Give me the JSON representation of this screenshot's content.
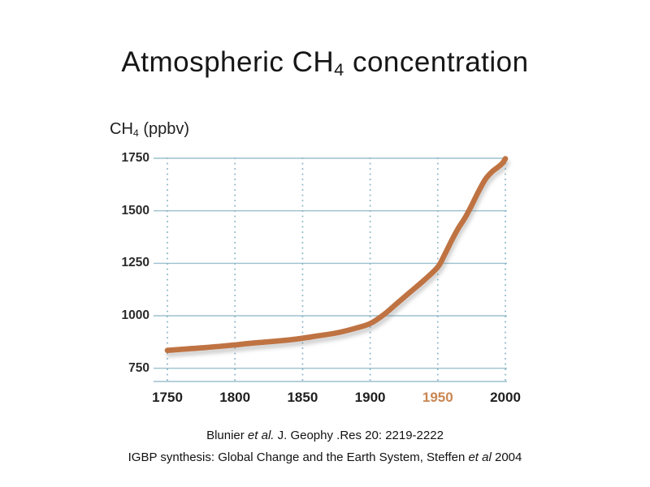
{
  "title": {
    "prefix": "Atmospheric CH",
    "sub": "4",
    "suffix": " concentration"
  },
  "axis_label": {
    "prefix": "CH",
    "sub": "4",
    "suffix": " (ppbv)"
  },
  "citations": [
    {
      "pre": "Blunier ",
      "italic": "et al.",
      "post": " J. Geophy .Res 20: 2219-2222"
    },
    {
      "pre": "IGBP synthesis: Global Change and the Earth System, Steffen ",
      "italic": "et al",
      "post": " 2004"
    }
  ],
  "colors": {
    "background": "#ffffff",
    "title_text": "#161616",
    "tick_text": "#1f1f1f",
    "line": "#bf7342",
    "grid": "#9cc0ce",
    "grid_dots": "#8fb8c8",
    "highlight_tick": "#c98652",
    "shadow": "#8a8a8a"
  },
  "chart_data": {
    "type": "line",
    "title": "Atmospheric CH4 concentration",
    "xlabel": "",
    "ylabel": "CH4 (ppbv)",
    "series_name": "Atmospheric CH4 concentration",
    "x": [
      1750,
      1760,
      1775,
      1790,
      1800,
      1810,
      1825,
      1840,
      1850,
      1860,
      1875,
      1890,
      1900,
      1910,
      1920,
      1930,
      1940,
      1950,
      1955,
      1960,
      1965,
      1970,
      1975,
      1980,
      1985,
      1990,
      1995,
      1998,
      2000
    ],
    "y": [
      835,
      840,
      847,
      855,
      861,
      868,
      876,
      885,
      893,
      903,
      918,
      942,
      963,
      1005,
      1060,
      1115,
      1170,
      1232,
      1290,
      1355,
      1415,
      1465,
      1525,
      1590,
      1648,
      1685,
      1710,
      1728,
      1748
    ],
    "xticks": [
      1750,
      1800,
      1850,
      1900,
      1950,
      2000
    ],
    "yticks": [
      1750,
      1500,
      1250,
      1000,
      750
    ],
    "xlim": [
      1750,
      2000
    ],
    "ylim": [
      687,
      1750
    ],
    "grid": "horizontal solid lines, vertical dotted lines, bottom border line",
    "legend": "none",
    "highlight_xtick": 1950,
    "line_color": "#bf7342",
    "grid_color": "#9cc0ce",
    "dot_color": "#8fb8c8",
    "highlight_color": "#c98652"
  }
}
